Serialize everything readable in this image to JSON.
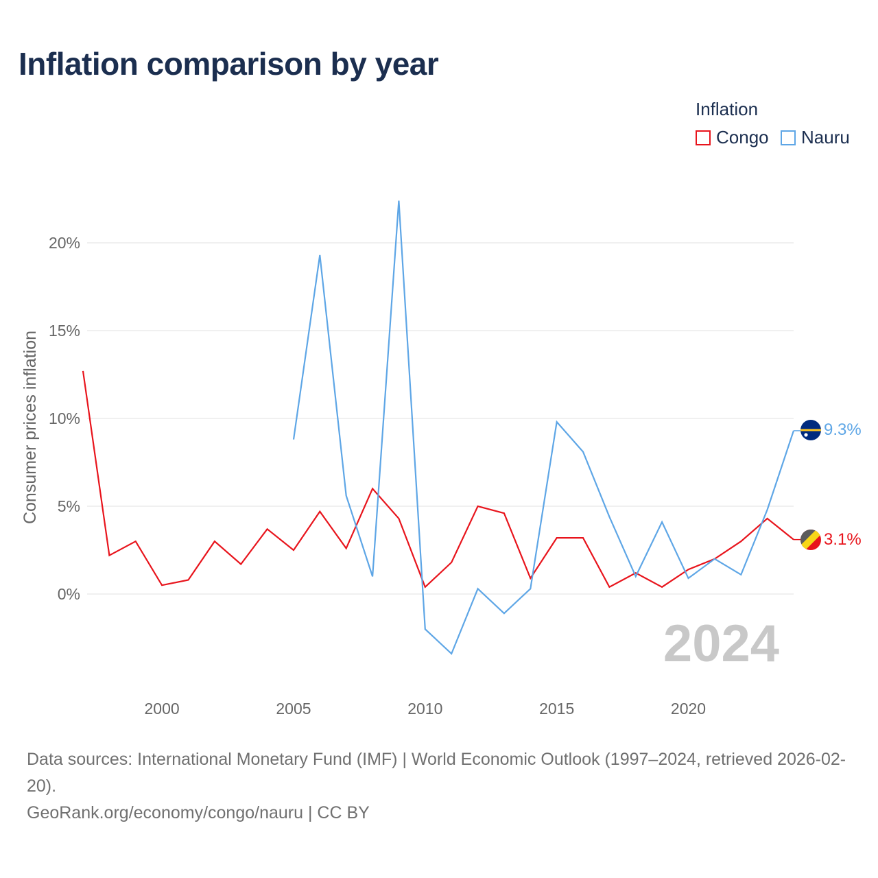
{
  "title": "Inflation comparison by year",
  "legend": {
    "title": "Inflation",
    "items": [
      {
        "label": "Congo",
        "color": "#e8141c"
      },
      {
        "label": "Nauru",
        "color": "#5ea6e6"
      }
    ]
  },
  "watermark_year": "2024",
  "footer": {
    "sources": "Data sources: International Monetary Fund (IMF) | World Economic Outlook (1997–2024, retrieved 2026-02-20).",
    "link": "GeoRank.org/economy/congo/nauru | CC BY"
  },
  "chart_data": {
    "type": "line",
    "title": "Inflation comparison by year",
    "xlabel": "",
    "ylabel": "Consumer prices inflation",
    "xlim": [
      1997,
      2024
    ],
    "ylim": [
      -5,
      24
    ],
    "x_ticks": [
      2000,
      2005,
      2010,
      2015,
      2020
    ],
    "y_ticks": [
      {
        "value": 0,
        "label": "0%"
      },
      {
        "value": 5,
        "label": "5%"
      },
      {
        "value": 10,
        "label": "10%"
      },
      {
        "value": 15,
        "label": "15%"
      },
      {
        "value": 20,
        "label": "20%"
      }
    ],
    "grid": true,
    "legend_position": "top-right",
    "series": [
      {
        "name": "Congo",
        "color": "#e8141c",
        "end_label": "3.1%",
        "flag": "congo-flag",
        "x": [
          1997,
          1998,
          1999,
          2000,
          2001,
          2002,
          2003,
          2004,
          2005,
          2006,
          2007,
          2008,
          2009,
          2010,
          2011,
          2012,
          2013,
          2014,
          2015,
          2016,
          2017,
          2018,
          2019,
          2020,
          2021,
          2022,
          2023,
          2024
        ],
        "values": [
          12.7,
          2.2,
          3.0,
          0.5,
          0.8,
          3.0,
          1.7,
          3.7,
          2.5,
          4.7,
          2.6,
          6.0,
          4.3,
          0.4,
          1.8,
          5.0,
          4.6,
          0.9,
          3.2,
          3.2,
          0.4,
          1.2,
          0.4,
          1.4,
          2.0,
          3.0,
          4.3,
          3.1
        ]
      },
      {
        "name": "Nauru",
        "color": "#5ea6e6",
        "end_label": "9.3%",
        "flag": "nauru-flag",
        "x": [
          2005,
          2006,
          2007,
          2008,
          2009,
          2010,
          2011,
          2012,
          2013,
          2014,
          2015,
          2016,
          2017,
          2018,
          2019,
          2020,
          2021,
          2022,
          2023,
          2024
        ],
        "values": [
          8.8,
          19.3,
          5.6,
          1.0,
          22.4,
          -2.0,
          -3.4,
          0.3,
          -1.1,
          0.3,
          9.8,
          8.1,
          4.4,
          1.0,
          4.1,
          0.9,
          2.0,
          1.1,
          4.8,
          9.3
        ]
      }
    ]
  }
}
